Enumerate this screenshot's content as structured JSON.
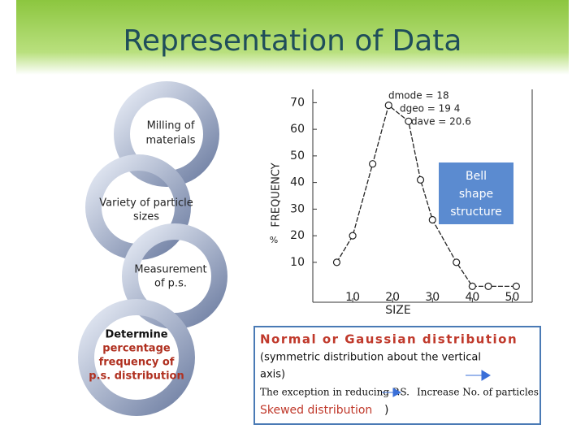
{
  "slide": {
    "title": "Representation of Data",
    "cycle": [
      {
        "lines": [
          "Milling of",
          "materials"
        ]
      },
      {
        "lines": [
          "Variety of particle",
          "sizes"
        ]
      },
      {
        "lines": [
          "Measurement",
          "of p.s."
        ]
      },
      {
        "lines": [
          "Determine",
          "percentage",
          "frequency of",
          "p.s. distribution"
        ]
      }
    ],
    "callout": [
      "Bell",
      "shape",
      "structure"
    ],
    "percent_mark": "%",
    "note": {
      "heading": "Normal or Gaussian distribution",
      "lines": [
        "(symmetric distribution about the vertical",
        "axis)"
      ],
      "exception": "The exception in reducing P.S.",
      "increase": "Increase No. of particles",
      "skewed": "Skewed distribution",
      "close": ")"
    }
  },
  "chart_data": {
    "type": "line",
    "xlabel": "SIZE",
    "ylabel": "FREQUENCY",
    "annotations": [
      "dmode = 18",
      "dgeo = 19 4",
      "dave = 20.6"
    ],
    "x": [
      6,
      10,
      15,
      19,
      24,
      27,
      30,
      36,
      40,
      44,
      51
    ],
    "series": [
      {
        "color": "#222222",
        "values": [
          10,
          20,
          47,
          69,
          63,
          41,
          26,
          10,
          1,
          1,
          1
        ]
      }
    ],
    "xlim": [
      0,
      55
    ],
    "ylim": [
      -5,
      75
    ],
    "xticks": [
      10,
      20,
      30,
      40,
      50
    ],
    "yticks": [
      10,
      20,
      30,
      40,
      50,
      60,
      70
    ]
  }
}
